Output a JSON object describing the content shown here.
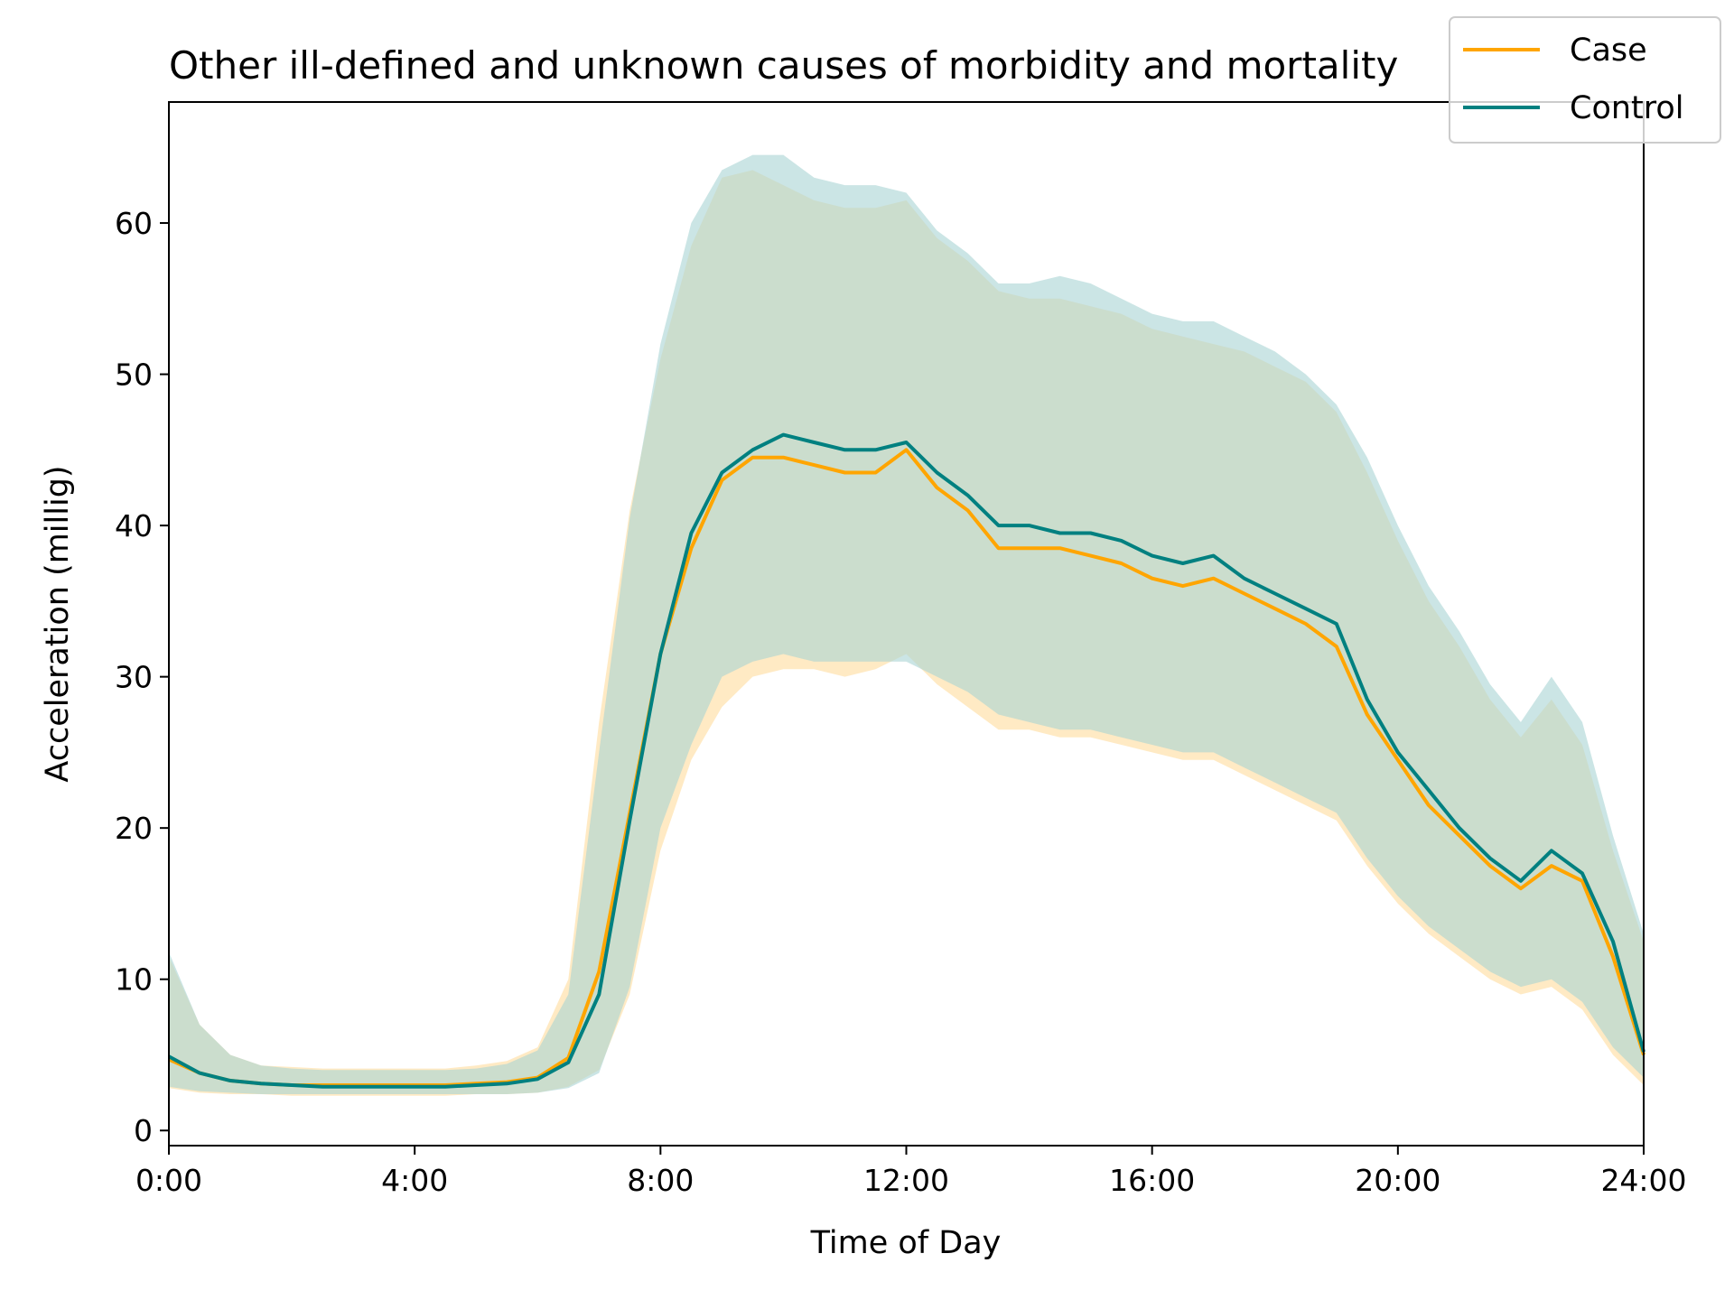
{
  "chart_data": {
    "type": "line",
    "title": "Other ill-defined and unknown causes of morbidity and mortality",
    "xlabel": "Time of Day",
    "ylabel": "Acceleration (millig)",
    "xlim": [
      0,
      24
    ],
    "ylim": [
      -1,
      68
    ],
    "x_tick_values": [
      0,
      4,
      8,
      12,
      16,
      20,
      24
    ],
    "x_tick_labels": [
      "0:00",
      "4:00",
      "8:00",
      "12:00",
      "16:00",
      "20:00",
      "24:00"
    ],
    "y_tick_values": [
      0,
      10,
      20,
      30,
      40,
      50,
      60
    ],
    "y_tick_labels": [
      "0",
      "10",
      "20",
      "30",
      "40",
      "50",
      "60"
    ],
    "legend_position": "top-right",
    "x": [
      0,
      0.5,
      1,
      1.5,
      2,
      2.5,
      3,
      3.5,
      4,
      4.5,
      5,
      5.5,
      6,
      6.5,
      7,
      7.5,
      8,
      8.5,
      9,
      9.5,
      10,
      10.5,
      11,
      11.5,
      12,
      12.5,
      13,
      13.5,
      14,
      14.5,
      15,
      15.5,
      16,
      16.5,
      17,
      17.5,
      18,
      18.5,
      19,
      19.5,
      20,
      20.5,
      21,
      21.5,
      22,
      22.5,
      23,
      23.5,
      24
    ],
    "series": [
      {
        "name": "Case",
        "color": "#ffa500",
        "band_color": "#ffe5b5",
        "values": [
          4.7,
          3.8,
          3.3,
          3.1,
          3.0,
          3.0,
          3.0,
          3.0,
          3.0,
          3.0,
          3.1,
          3.2,
          3.5,
          4.8,
          10.5,
          21.0,
          31.5,
          38.5,
          43.0,
          44.5,
          44.5,
          44.0,
          43.5,
          43.5,
          45.0,
          42.5,
          41.0,
          38.5,
          38.5,
          38.5,
          38.0,
          37.5,
          36.5,
          36.0,
          36.5,
          35.5,
          34.5,
          33.5,
          32.0,
          27.5,
          24.5,
          21.5,
          19.5,
          17.5,
          16.0,
          17.5,
          16.5,
          11.5,
          5.0
        ],
        "lower": [
          2.8,
          2.5,
          2.4,
          2.4,
          2.3,
          2.3,
          2.3,
          2.3,
          2.3,
          2.3,
          2.4,
          2.4,
          2.5,
          2.9,
          4.0,
          9.0,
          18.5,
          24.5,
          28.0,
          30.0,
          30.5,
          30.5,
          30.0,
          30.5,
          31.5,
          29.5,
          28.0,
          26.5,
          26.5,
          26.0,
          26.0,
          25.5,
          25.0,
          24.5,
          24.5,
          23.5,
          22.5,
          21.5,
          20.5,
          17.5,
          15.0,
          13.0,
          11.5,
          10.0,
          9.0,
          9.5,
          8.0,
          5.0,
          3.0
        ],
        "upper": [
          11.5,
          7.0,
          5.0,
          4.3,
          4.2,
          4.1,
          4.1,
          4.1,
          4.1,
          4.1,
          4.3,
          4.6,
          5.5,
          10.0,
          27.0,
          41.0,
          51.0,
          58.5,
          63.0,
          63.5,
          62.5,
          61.5,
          61.0,
          61.0,
          61.5,
          59.0,
          57.5,
          55.5,
          55.0,
          55.0,
          54.5,
          54.0,
          53.0,
          52.5,
          52.0,
          51.5,
          50.5,
          49.5,
          47.5,
          43.5,
          39.0,
          35.0,
          32.0,
          28.5,
          26.0,
          28.5,
          25.5,
          18.5,
          12.5
        ]
      },
      {
        "name": "Control",
        "color": "#008080",
        "band_color": "#a8d3d3",
        "values": [
          4.9,
          3.8,
          3.3,
          3.1,
          3.0,
          2.9,
          2.9,
          2.9,
          2.9,
          2.9,
          3.0,
          3.1,
          3.4,
          4.5,
          9.0,
          20.5,
          31.5,
          39.5,
          43.5,
          45.0,
          46.0,
          45.5,
          45.0,
          45.0,
          45.5,
          43.5,
          42.0,
          40.0,
          40.0,
          39.5,
          39.5,
          39.0,
          38.0,
          37.5,
          38.0,
          36.5,
          35.5,
          34.5,
          33.5,
          28.5,
          25.0,
          22.5,
          20.0,
          18.0,
          16.5,
          18.5,
          17.0,
          12.5,
          5.2
        ],
        "lower": [
          2.9,
          2.6,
          2.5,
          2.4,
          2.4,
          2.4,
          2.4,
          2.4,
          2.4,
          2.4,
          2.4,
          2.4,
          2.5,
          2.8,
          3.8,
          9.5,
          20.0,
          25.5,
          30.0,
          31.0,
          31.5,
          31.0,
          31.0,
          31.0,
          31.0,
          30.0,
          29.0,
          27.5,
          27.0,
          26.5,
          26.5,
          26.0,
          25.5,
          25.0,
          25.0,
          24.0,
          23.0,
          22.0,
          21.0,
          18.0,
          15.5,
          13.5,
          12.0,
          10.5,
          9.5,
          10.0,
          8.5,
          5.5,
          3.5
        ],
        "upper": [
          11.8,
          7.0,
          5.0,
          4.3,
          4.1,
          4.0,
          4.0,
          4.0,
          4.0,
          4.0,
          4.1,
          4.4,
          5.3,
          9.0,
          25.0,
          40.5,
          52.0,
          60.0,
          63.5,
          64.5,
          64.5,
          63.0,
          62.5,
          62.5,
          62.0,
          59.5,
          58.0,
          56.0,
          56.0,
          56.5,
          56.0,
          55.0,
          54.0,
          53.5,
          53.5,
          52.5,
          51.5,
          50.0,
          48.0,
          44.5,
          40.0,
          36.0,
          33.0,
          29.5,
          27.0,
          30.0,
          27.0,
          19.5,
          13.0
        ]
      }
    ]
  }
}
